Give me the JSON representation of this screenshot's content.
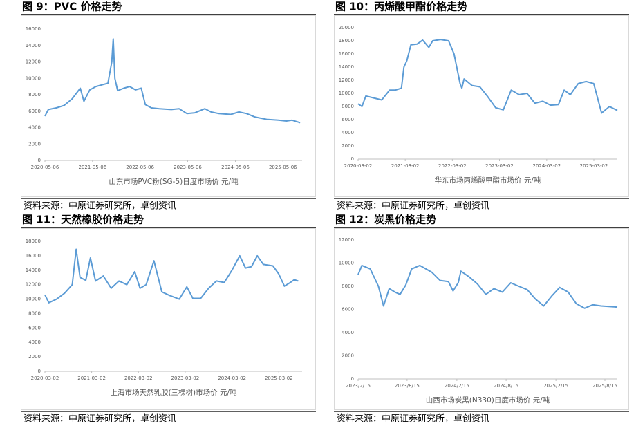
{
  "chart_data": [
    {
      "type": "line",
      "title": "图 9：PVC 价格走势",
      "source": "资料来源：中原证券研究所，卓创资讯",
      "xlim": [
        "2020-05-06",
        "2025-09-30"
      ],
      "xticks": [
        "2020-05-06",
        "2021-05-06",
        "2022-05-06",
        "2023-05-06",
        "2024-05-06",
        "2025-05-06"
      ],
      "ylim": [
        0,
        16000
      ],
      "yticks": [
        0,
        2000,
        4000,
        6000,
        8000,
        10000,
        12000,
        14000,
        16000
      ],
      "grid": false,
      "x": [
        "2020-05-06",
        "2020-06-01",
        "2020-08-01",
        "2020-10-01",
        "2020-12-01",
        "2021-02-01",
        "2021-03-01",
        "2021-04-15",
        "2021-06-01",
        "2021-07-15",
        "2021-09-01",
        "2021-10-01",
        "2021-10-12",
        "2021-10-25",
        "2021-11-15",
        "2022-01-01",
        "2022-02-15",
        "2022-04-01",
        "2022-05-15",
        "2022-06-15",
        "2022-08-01",
        "2022-10-01",
        "2023-01-01",
        "2023-03-01",
        "2023-05-01",
        "2023-07-01",
        "2023-09-15",
        "2023-11-01",
        "2024-01-01",
        "2024-04-01",
        "2024-06-01",
        "2024-08-01",
        "2024-10-01",
        "2025-01-01",
        "2025-04-01",
        "2025-06-01",
        "2025-07-15",
        "2025-09-15"
      ],
      "series": [
        {
          "name": "山东市场PVC粉(SG-5)日度市场价 元/吨",
          "color": "#5b9bd5",
          "values": [
            5400,
            6200,
            6400,
            6700,
            7500,
            8800,
            7200,
            8600,
            9000,
            9200,
            9400,
            12000,
            14800,
            10000,
            8500,
            8800,
            9000,
            8600,
            8800,
            6800,
            6400,
            6300,
            6200,
            6300,
            5700,
            5800,
            6300,
            5900,
            5700,
            5600,
            5900,
            5700,
            5300,
            5000,
            4900,
            4800,
            4900,
            4600
          ]
        }
      ]
    },
    {
      "type": "line",
      "title": "图 10：丙烯酸甲酯价格走势",
      "source": "资料来源：中原证券研究所，卓创资讯",
      "xlim": [
        "2020-03-02",
        "2025-08-31"
      ],
      "xticks": [
        "2020-03-02",
        "2021-03-02",
        "2022-03-02",
        "2023-03-02",
        "2024-03-02",
        "2025-03-02"
      ],
      "ylim": [
        0,
        20000
      ],
      "yticks": [
        0,
        2000,
        4000,
        6000,
        8000,
        10000,
        12000,
        14000,
        16000,
        18000,
        20000
      ],
      "grid": false,
      "x": [
        "2020-03-02",
        "2020-04-01",
        "2020-05-01",
        "2020-07-01",
        "2020-09-01",
        "2020-11-01",
        "2020-12-15",
        "2021-02-01",
        "2021-02-20",
        "2021-03-15",
        "2021-04-15",
        "2021-06-01",
        "2021-07-15",
        "2021-09-01",
        "2021-10-01",
        "2021-12-01",
        "2022-02-01",
        "2022-03-15",
        "2022-05-01",
        "2022-05-15",
        "2022-06-01",
        "2022-08-01",
        "2022-10-01",
        "2022-12-01",
        "2023-02-01",
        "2023-04-01",
        "2023-06-01",
        "2023-08-01",
        "2023-10-01",
        "2023-12-01",
        "2024-02-01",
        "2024-04-01",
        "2024-06-01",
        "2024-07-15",
        "2024-09-01",
        "2024-11-01",
        "2025-01-01",
        "2025-03-01",
        "2025-05-01",
        "2025-07-01",
        "2025-08-31"
      ],
      "series": [
        {
          "name": "华东市场丙烯酸甲酯市场价 元/吨",
          "color": "#5b9bd5",
          "values": [
            8400,
            8000,
            9600,
            9300,
            9000,
            10500,
            10500,
            10800,
            14000,
            15000,
            17400,
            17500,
            18100,
            17000,
            18000,
            18200,
            18000,
            16000,
            11500,
            10800,
            12200,
            11200,
            11000,
            9500,
            7800,
            7500,
            10500,
            9800,
            10000,
            8500,
            8800,
            8200,
            8300,
            10500,
            9800,
            11500,
            11800,
            11500,
            7000,
            8000,
            7400
          ]
        }
      ]
    },
    {
      "type": "line",
      "title": "图 11：天然橡胶价格走势",
      "source": "资料来源：中原证券研究所，卓创资讯",
      "xlim": [
        "2020-03-02",
        "2025-08-31"
      ],
      "xticks": [
        "2020-03-02",
        "2021-03-02",
        "2022-03-02",
        "2023-03-02",
        "2024-03-02",
        "2025-03-02"
      ],
      "ylim": [
        0,
        18000
      ],
      "yticks": [
        0,
        2000,
        4000,
        6000,
        8000,
        10000,
        12000,
        14000,
        16000,
        18000
      ],
      "grid": false,
      "x": [
        "2020-03-02",
        "2020-04-01",
        "2020-06-01",
        "2020-08-01",
        "2020-10-01",
        "2020-11-01",
        "2020-12-01",
        "2021-01-15",
        "2021-02-20",
        "2021-04-01",
        "2021-06-01",
        "2021-08-01",
        "2021-10-01",
        "2021-12-01",
        "2022-02-01",
        "2022-03-15",
        "2022-05-01",
        "2022-07-01",
        "2022-09-01",
        "2022-11-01",
        "2023-01-15",
        "2023-03-15",
        "2023-05-01",
        "2023-07-01",
        "2023-09-01",
        "2023-11-01",
        "2024-01-01",
        "2024-03-01",
        "2024-05-01",
        "2024-06-15",
        "2024-08-01",
        "2024-09-15",
        "2024-11-01",
        "2025-01-15",
        "2025-03-01",
        "2025-04-15",
        "2025-06-01",
        "2025-07-01",
        "2025-08-01"
      ],
      "series": [
        {
          "name": "上海市场天然乳胶(三棵树)市场价 元/吨",
          "color": "#5b9bd5",
          "values": [
            10600,
            9500,
            10000,
            10800,
            12000,
            16900,
            13000,
            12600,
            15700,
            12500,
            13200,
            11500,
            12500,
            12000,
            13800,
            11500,
            12000,
            15300,
            11000,
            10500,
            10000,
            11700,
            10100,
            10100,
            11500,
            12500,
            12300,
            14000,
            16000,
            14300,
            14500,
            16000,
            14800,
            14600,
            13500,
            11800,
            12300,
            12700,
            12500
          ]
        }
      ]
    },
    {
      "type": "line",
      "title": "图 12：炭黑价格走势",
      "source": "资料来源：中原证券研究所，卓创资讯",
      "xlim": [
        "2023/2/15",
        "2025/9/30"
      ],
      "xticks": [
        "2023/2/15",
        "2023/8/15",
        "2024/2/15",
        "2024/8/15",
        "2025/2/15",
        "2025/8/15"
      ],
      "ylim": [
        0,
        12000
      ],
      "yticks": [
        0,
        2000,
        4000,
        6000,
        8000,
        10000,
        12000
      ],
      "grid": false,
      "x": [
        "2023/2/15",
        "2023/3/1",
        "2023/4/1",
        "2023/5/1",
        "2023/5/20",
        "2023/6/10",
        "2023/7/1",
        "2023/7/20",
        "2023/8/10",
        "2023/9/1",
        "2023/10/1",
        "2023/11/15",
        "2023/12/15",
        "2024/1/15",
        "2024/2/1",
        "2024/2/20",
        "2024/3/1",
        "2024/4/1",
        "2024/5/1",
        "2024/6/1",
        "2024/7/1",
        "2024/8/1",
        "2024/9/1",
        "2024/10/1",
        "2024/11/1",
        "2024/12/1",
        "2025/1/1",
        "2025/2/1",
        "2025/3/1",
        "2025/4/1",
        "2025/5/1",
        "2025/6/1",
        "2025/7/1",
        "2025/8/1",
        "2025/9/30"
      ],
      "series": [
        {
          "name": "山西市场炭黑(N330)日度市场价 元/吨",
          "color": "#5b9bd5",
          "values": [
            9000,
            9800,
            9500,
            8000,
            6300,
            7800,
            7500,
            7300,
            8100,
            9500,
            9800,
            9200,
            8500,
            8400,
            7600,
            8300,
            9300,
            8800,
            8200,
            7300,
            7800,
            7500,
            8300,
            8000,
            7700,
            6900,
            6300,
            7200,
            7900,
            7500,
            6500,
            6100,
            6400,
            6300,
            6200
          ]
        }
      ]
    }
  ]
}
